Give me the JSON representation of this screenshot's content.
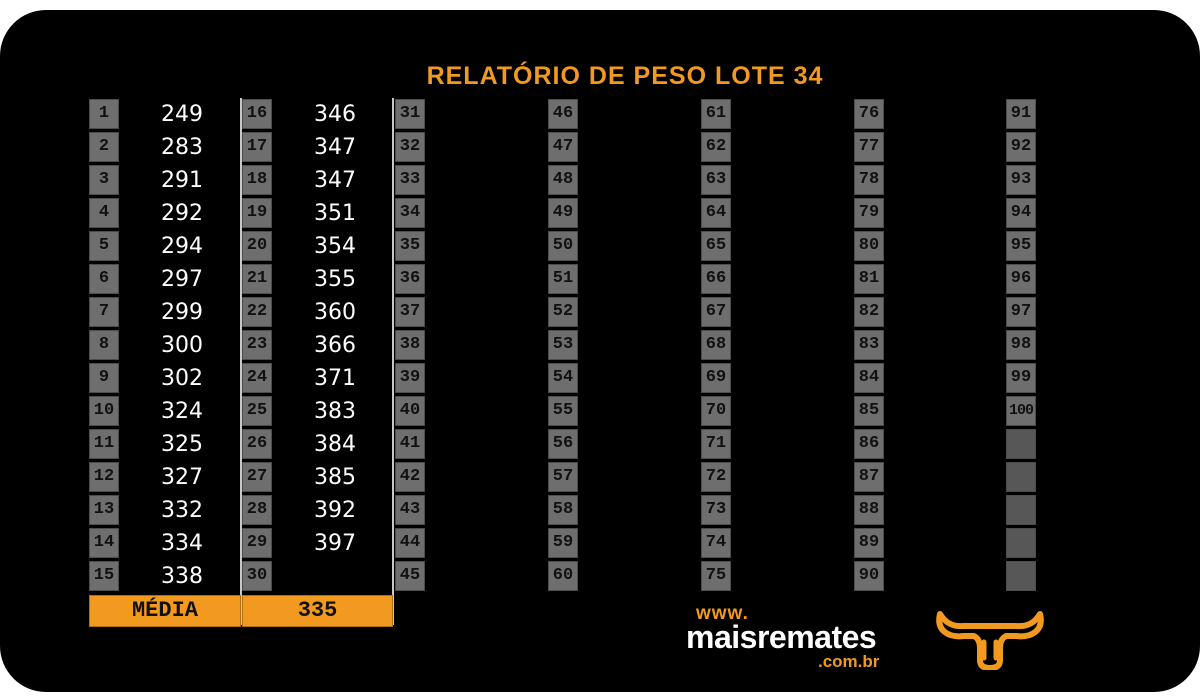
{
  "report": {
    "title": "RELATÓRIO DE PESO LOTE  34",
    "columns": [
      {
        "rows": [
          {
            "n": "1",
            "v": "249"
          },
          {
            "n": "2",
            "v": "283"
          },
          {
            "n": "3",
            "v": "291"
          },
          {
            "n": "4",
            "v": "292"
          },
          {
            "n": "5",
            "v": "294"
          },
          {
            "n": "6",
            "v": "297"
          },
          {
            "n": "7",
            "v": "299"
          },
          {
            "n": "8",
            "v": "300"
          },
          {
            "n": "9",
            "v": "302"
          },
          {
            "n": "10",
            "v": "324"
          },
          {
            "n": "11",
            "v": "325"
          },
          {
            "n": "12",
            "v": "327"
          },
          {
            "n": "13",
            "v": "332"
          },
          {
            "n": "14",
            "v": "334"
          },
          {
            "n": "15",
            "v": "338"
          }
        ]
      },
      {
        "rows": [
          {
            "n": "16",
            "v": "346"
          },
          {
            "n": "17",
            "v": "347"
          },
          {
            "n": "18",
            "v": "347"
          },
          {
            "n": "19",
            "v": "351"
          },
          {
            "n": "20",
            "v": "354"
          },
          {
            "n": "21",
            "v": "355"
          },
          {
            "n": "22",
            "v": "360"
          },
          {
            "n": "23",
            "v": "366"
          },
          {
            "n": "24",
            "v": "371"
          },
          {
            "n": "25",
            "v": "383"
          },
          {
            "n": "26",
            "v": "384"
          },
          {
            "n": "27",
            "v": "385"
          },
          {
            "n": "28",
            "v": "392"
          },
          {
            "n": "29",
            "v": "397"
          },
          {
            "n": "30",
            "v": ""
          }
        ]
      },
      {
        "rows": [
          {
            "n": "31",
            "v": ""
          },
          {
            "n": "32",
            "v": ""
          },
          {
            "n": "33",
            "v": ""
          },
          {
            "n": "34",
            "v": ""
          },
          {
            "n": "35",
            "v": ""
          },
          {
            "n": "36",
            "v": ""
          },
          {
            "n": "37",
            "v": ""
          },
          {
            "n": "38",
            "v": ""
          },
          {
            "n": "39",
            "v": ""
          },
          {
            "n": "40",
            "v": ""
          },
          {
            "n": "41",
            "v": ""
          },
          {
            "n": "42",
            "v": ""
          },
          {
            "n": "43",
            "v": ""
          },
          {
            "n": "44",
            "v": ""
          },
          {
            "n": "45",
            "v": ""
          }
        ]
      },
      {
        "rows": [
          {
            "n": "46",
            "v": ""
          },
          {
            "n": "47",
            "v": ""
          },
          {
            "n": "48",
            "v": ""
          },
          {
            "n": "49",
            "v": ""
          },
          {
            "n": "50",
            "v": ""
          },
          {
            "n": "51",
            "v": ""
          },
          {
            "n": "52",
            "v": ""
          },
          {
            "n": "53",
            "v": ""
          },
          {
            "n": "54",
            "v": ""
          },
          {
            "n": "55",
            "v": ""
          },
          {
            "n": "56",
            "v": ""
          },
          {
            "n": "57",
            "v": ""
          },
          {
            "n": "58",
            "v": ""
          },
          {
            "n": "59",
            "v": ""
          },
          {
            "n": "60",
            "v": ""
          }
        ]
      },
      {
        "rows": [
          {
            "n": "61",
            "v": ""
          },
          {
            "n": "62",
            "v": ""
          },
          {
            "n": "63",
            "v": ""
          },
          {
            "n": "64",
            "v": ""
          },
          {
            "n": "65",
            "v": ""
          },
          {
            "n": "66",
            "v": ""
          },
          {
            "n": "67",
            "v": ""
          },
          {
            "n": "68",
            "v": ""
          },
          {
            "n": "69",
            "v": ""
          },
          {
            "n": "70",
            "v": ""
          },
          {
            "n": "71",
            "v": ""
          },
          {
            "n": "72",
            "v": ""
          },
          {
            "n": "73",
            "v": ""
          },
          {
            "n": "74",
            "v": ""
          },
          {
            "n": "75",
            "v": ""
          }
        ]
      },
      {
        "rows": [
          {
            "n": "76",
            "v": ""
          },
          {
            "n": "77",
            "v": ""
          },
          {
            "n": "78",
            "v": ""
          },
          {
            "n": "79",
            "v": ""
          },
          {
            "n": "80",
            "v": ""
          },
          {
            "n": "81",
            "v": ""
          },
          {
            "n": "82",
            "v": ""
          },
          {
            "n": "83",
            "v": ""
          },
          {
            "n": "84",
            "v": ""
          },
          {
            "n": "85",
            "v": ""
          },
          {
            "n": "86",
            "v": ""
          },
          {
            "n": "87",
            "v": ""
          },
          {
            "n": "88",
            "v": ""
          },
          {
            "n": "89",
            "v": ""
          },
          {
            "n": "90",
            "v": ""
          }
        ]
      },
      {
        "rows": [
          {
            "n": "91",
            "v": ""
          },
          {
            "n": "92",
            "v": ""
          },
          {
            "n": "93",
            "v": ""
          },
          {
            "n": "94",
            "v": ""
          },
          {
            "n": "95",
            "v": ""
          },
          {
            "n": "96",
            "v": ""
          },
          {
            "n": "97",
            "v": ""
          },
          {
            "n": "98",
            "v": ""
          },
          {
            "n": "99",
            "v": ""
          },
          {
            "n": "100",
            "v": ""
          },
          {
            "n": "",
            "v": ""
          },
          {
            "n": "",
            "v": ""
          },
          {
            "n": "",
            "v": ""
          },
          {
            "n": "",
            "v": ""
          },
          {
            "n": "",
            "v": ""
          }
        ]
      }
    ],
    "average_label": "MÉDIA",
    "average_value": "335"
  },
  "brand": {
    "www": "www.",
    "name": "maisremates",
    "domain": ".com.br",
    "logo_icon": "bull-head-icon"
  },
  "colors": {
    "background": "#000000",
    "accent": "#f29a1f",
    "cell": "#6e6e6e",
    "value_text": "#ffffff"
  }
}
